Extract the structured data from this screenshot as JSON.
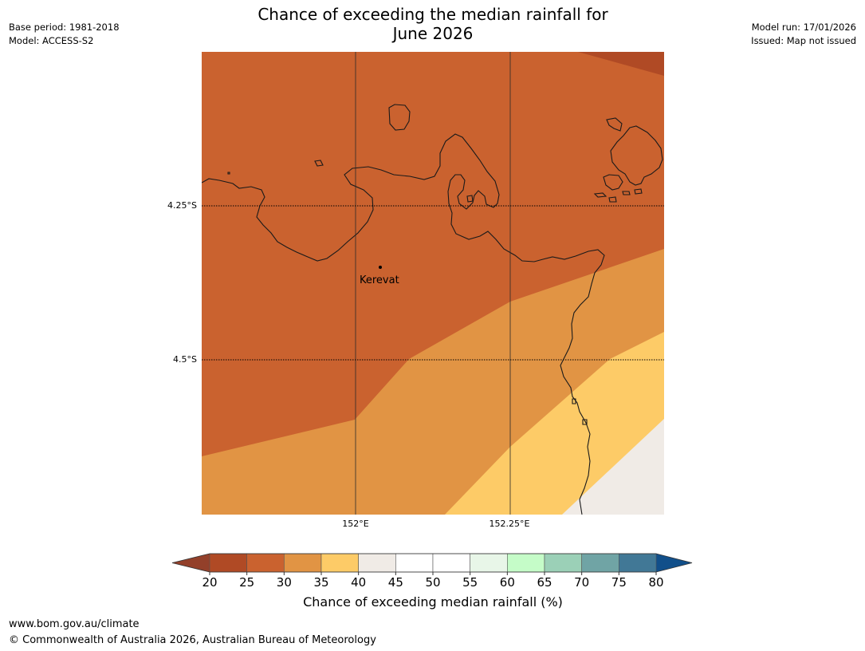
{
  "title_line1": "Chance of exceeding the median rainfall for",
  "title_line2": "June 2026",
  "meta_left": {
    "base_period": "Base period: 1981-2018",
    "model": "Model: ACCESS-S2"
  },
  "meta_right": {
    "model_run": "Model run: 17/01/2026",
    "issued": "Issued: Map not issued"
  },
  "map": {
    "lat_labels": [
      "4.25°S",
      "4.5°S"
    ],
    "lon_labels": [
      "152°E",
      "152.25°E"
    ],
    "place": {
      "name": "Kerevat"
    }
  },
  "colorbar": {
    "title": "Chance of exceeding median rainfall (%)",
    "ticks": [
      "20",
      "25",
      "30",
      "35",
      "40",
      "45",
      "50",
      "55",
      "60",
      "65",
      "70",
      "75",
      "80"
    ],
    "colors": [
      "#b04a25",
      "#ca622f",
      "#e19444",
      "#fdcb67",
      "#f0ebe6",
      "#ffffff",
      "#ffffff",
      "#e8f6e8",
      "#c5fcc8",
      "#9bd0b7",
      "#70a4a5",
      "#417896"
    ],
    "under_color": "#93402a",
    "over_color": "#114f8a"
  },
  "footer": {
    "url": "www.bom.gov.au/climate",
    "copyright": "© Commonwealth of Australia 2026, Australian Bureau of Meteorology"
  }
}
